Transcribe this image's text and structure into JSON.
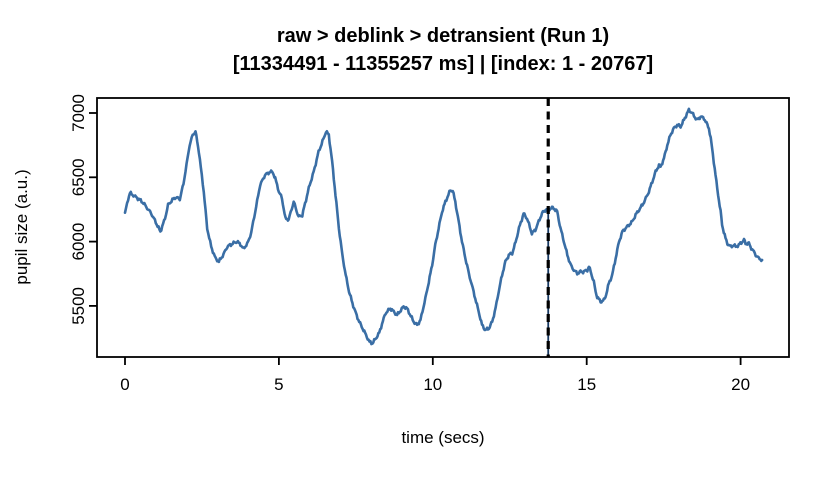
{
  "title": {
    "line1": "raw > deblink > detransient (Run 1)",
    "line2": "[11334491 - 11355257 ms] | [index: 1 - 20767]"
  },
  "axes": {
    "x_label": "time (secs)",
    "y_label": "pupil size (a.u.)"
  },
  "colors": {
    "trace": "#3a6ea5",
    "marker_dash": "#000000",
    "marker_underline": "#16365f",
    "frame": "#000000",
    "background": "#ffffff"
  },
  "chart_data": {
    "type": "line",
    "title": "raw > deblink > detransient (Run 1)",
    "subtitle": "[11334491 - 11355257 ms] | [index: 1 - 20767]",
    "xlabel": "time (secs)",
    "ylabel": "pupil size (a.u.)",
    "x_ticks": [
      0,
      5,
      10,
      15,
      20
    ],
    "y_ticks": [
      5500,
      6000,
      6500,
      7000
    ],
    "xlim": [
      -0.85,
      21.6
    ],
    "ylim": [
      5095,
      7125
    ],
    "grid": false,
    "legend": null,
    "marker_line": {
      "x": 13.75,
      "style": "dashed",
      "color": "#000000",
      "underline_color": "#16365f",
      "curve_y": 6248
    },
    "series": [
      {
        "name": "pupil size",
        "color": "#3a6ea5",
        "x": [
          0.0,
          0.1,
          0.16,
          0.3,
          0.45,
          0.6,
          0.72,
          0.85,
          1.0,
          1.15,
          1.3,
          1.4,
          1.54,
          1.65,
          1.78,
          1.9,
          2.0,
          2.1,
          2.2,
          2.29,
          2.4,
          2.56,
          2.67,
          2.8,
          2.94,
          3.05,
          3.2,
          3.32,
          3.5,
          3.64,
          3.75,
          3.85,
          4.0,
          4.1,
          4.23,
          4.39,
          4.55,
          4.72,
          4.8,
          4.88,
          5.0,
          5.1,
          5.21,
          5.32,
          5.48,
          5.64,
          5.76,
          5.97,
          6.13,
          6.29,
          6.45,
          6.53,
          6.62,
          6.73,
          6.84,
          6.95,
          7.06,
          7.17,
          7.28,
          7.39,
          7.5,
          7.61,
          7.72,
          7.83,
          7.94,
          8.04,
          8.15,
          8.26,
          8.35,
          8.46,
          8.62,
          8.73,
          8.84,
          9.05,
          9.16,
          9.38,
          9.49,
          9.6,
          9.76,
          9.87,
          9.98,
          10.08,
          10.19,
          10.3,
          10.41,
          10.57,
          10.65,
          10.73,
          10.84,
          10.95,
          11.06,
          11.17,
          11.27,
          11.38,
          11.49,
          11.6,
          11.71,
          11.82,
          11.93,
          12.04,
          12.14,
          12.25,
          12.36,
          12.47,
          12.58,
          12.69,
          12.8,
          12.95,
          13.06,
          13.22,
          13.33,
          13.44,
          13.55,
          13.66,
          13.76,
          13.87,
          13.95,
          14.04,
          14.15,
          14.26,
          14.37,
          14.48,
          14.58,
          14.69,
          14.8,
          14.91,
          15.02,
          15.07,
          15.13,
          15.23,
          15.29,
          15.34,
          15.45,
          15.56,
          15.61,
          15.72,
          15.83,
          15.94,
          16.05,
          16.16,
          16.26,
          16.37,
          16.48,
          16.59,
          16.7,
          16.81,
          16.92,
          17.02,
          17.13,
          17.24,
          17.35,
          17.4,
          17.51,
          17.62,
          17.72,
          17.83,
          17.94,
          18.05,
          18.16,
          18.32,
          18.43,
          18.54,
          18.59,
          18.7,
          18.81,
          18.92,
          18.97,
          19.03,
          19.13,
          19.24,
          19.35,
          19.4,
          19.51,
          19.57,
          19.62,
          19.68,
          19.78,
          19.84,
          19.94,
          20.05,
          20.11,
          20.16,
          20.27,
          20.32,
          20.43,
          20.49,
          20.59,
          20.7
        ],
        "y": [
          6220,
          6330,
          6378,
          6355,
          6330,
          6300,
          6260,
          6220,
          6150,
          6077,
          6180,
          6285,
          6324,
          6345,
          6330,
          6450,
          6600,
          6751,
          6830,
          6857,
          6700,
          6388,
          6103,
          5960,
          5870,
          5845,
          5900,
          5960,
          5985,
          6000,
          5978,
          5943,
          5995,
          6070,
          6233,
          6440,
          6518,
          6543,
          6540,
          6492,
          6388,
          6336,
          6180,
          6172,
          6310,
          6193,
          6205,
          6414,
          6543,
          6698,
          6800,
          6857,
          6830,
          6622,
          6362,
          6103,
          5896,
          5740,
          5611,
          5520,
          5442,
          5377,
          5325,
          5273,
          5221,
          5209,
          5248,
          5290,
          5360,
          5442,
          5481,
          5455,
          5429,
          5494,
          5481,
          5377,
          5351,
          5390,
          5558,
          5688,
          5818,
          5973,
          6103,
          6232,
          6310,
          6400,
          6395,
          6310,
          6155,
          5999,
          5870,
          5753,
          5662,
          5558,
          5455,
          5351,
          5312,
          5325,
          5377,
          5481,
          5611,
          5740,
          5844,
          5896,
          5909,
          5995,
          6103,
          6218,
          6181,
          6064,
          6090,
          6155,
          6220,
          6246,
          6248,
          6264,
          6255,
          6233,
          6103,
          6000,
          5896,
          5818,
          5779,
          5753,
          5766,
          5766,
          5779,
          5805,
          5766,
          5688,
          5610,
          5571,
          5532,
          5545,
          5571,
          5675,
          5740,
          5870,
          6000,
          6077,
          6103,
          6129,
          6155,
          6207,
          6246,
          6285,
          6336,
          6388,
          6466,
          6543,
          6595,
          6580,
          6648,
          6751,
          6829,
          6881,
          6907,
          6894,
          6946,
          7024,
          6998,
          6959,
          6946,
          6972,
          6959,
          6907,
          6881,
          6803,
          6621,
          6414,
          6233,
          6129,
          6025,
          5986,
          5973,
          5960,
          5973,
          5960,
          5973,
          5999,
          6012,
          5986,
          5986,
          5960,
          5921,
          5896,
          5870,
          5857
        ]
      }
    ]
  }
}
